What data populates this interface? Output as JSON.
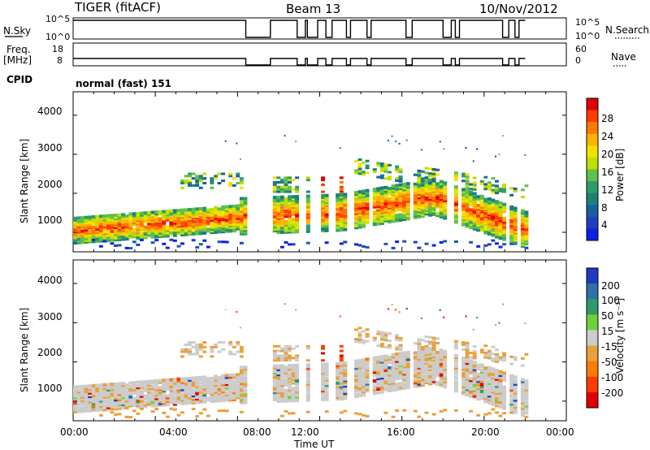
{
  "header": {
    "radar": "TIGER (fitACF)",
    "beam": "Beam 13",
    "date": "10/Nov/2012"
  },
  "side_labels": {
    "nsky": "N.Sky",
    "freq": "Freq.",
    "freq_unit": "[MHz]",
    "cpid": "CPID",
    "nsearch": "N.Search",
    "nave": "Nave"
  },
  "mode_label": "normal (fast) 151",
  "chart_data": [
    {
      "type": "line",
      "panel": "sky-noise",
      "left_ticks": [
        "10^5",
        "10^0"
      ],
      "right_ticks": [
        "10^5",
        "10^0"
      ],
      "x_ticks": [
        "00:00",
        "04:00",
        "08:00",
        "12:00",
        "16:00",
        "20:00",
        "00:00"
      ],
      "xlim_hours": [
        0,
        24
      ],
      "operating_hours": [
        0,
        22
      ],
      "gaps_hours": [
        [
          8.4,
          9.6
        ],
        [
          10.9,
          11.3
        ],
        [
          11.4,
          11.9
        ],
        [
          12.3,
          12.6
        ],
        [
          13.3,
          13.5
        ],
        [
          14.3,
          14.5
        ],
        [
          16.2,
          16.5
        ],
        [
          18.0,
          18.4
        ],
        [
          18.6,
          18.8
        ],
        [
          20.9,
          21.2
        ],
        [
          21.5,
          21.7
        ]
      ]
    },
    {
      "type": "line",
      "panel": "frequency",
      "left_ticks": [
        "18",
        "8"
      ],
      "right_ticks": [
        "60",
        "0"
      ],
      "xlim_hours": [
        0,
        24
      ]
    },
    {
      "type": "heatmap",
      "panel": "power",
      "ylabel": "Slant Range [km]",
      "y_ticks": [
        "1000",
        "2000",
        "3000",
        "4000"
      ],
      "ylim": [
        500,
        4600
      ],
      "x_ticks": [
        "00:00",
        "04:00",
        "08:00",
        "12:00",
        "16:00",
        "20:00",
        "00:00"
      ],
      "xlim_hours": [
        0,
        24
      ],
      "colorbar_label": "Power [dB]",
      "colorbar_ticks": [
        "28",
        "24",
        "20",
        "16",
        "12",
        "8",
        "4"
      ],
      "colorbar_colors": [
        "#e00000",
        "#ff3b00",
        "#ff7a00",
        "#ffb300",
        "#f5e000",
        "#bde000",
        "#5fc04a",
        "#2f9a6a",
        "#1d7f7a",
        "#1a5fa0",
        "#1f3fbf",
        "#1020e0"
      ]
    },
    {
      "type": "heatmap",
      "panel": "velocity",
      "ylabel": "Slant Range [km]",
      "y_ticks": [
        "1000",
        "2000",
        "3000",
        "4000"
      ],
      "ylim": [
        500,
        4600
      ],
      "x_ticks": [
        "00:00",
        "04:00",
        "08:00",
        "12:00",
        "16:00",
        "20:00",
        "00:00"
      ],
      "xlim_hours": [
        0,
        24
      ],
      "xlabel": "Time UT",
      "colorbar_label": "Velocity [m s⁻¹]",
      "colorbar_ticks": [
        "200",
        "100",
        "50",
        "15",
        "-15",
        "-50",
        "-100",
        "-200"
      ],
      "colorbar_colors": [
        "#1f3bbf",
        "#2e72a8",
        "#2f9a6a",
        "#6fd13a",
        "#cccccc",
        "#e8a13a",
        "#ff7a00",
        "#ff3b00",
        "#e00000"
      ]
    }
  ]
}
